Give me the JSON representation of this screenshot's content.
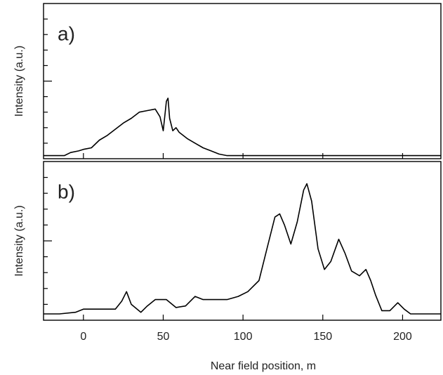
{
  "chart_data": [
    {
      "type": "line",
      "label": "a)",
      "ylabel": "Intensity (a.u.)",
      "xlim": [
        -25,
        224
      ],
      "xticks": [
        0,
        50,
        100,
        150,
        200
      ],
      "ylim": [
        0,
        10
      ],
      "yticks": [
        5
      ],
      "minor_yticks": [
        1,
        2,
        3,
        4,
        6,
        7,
        8,
        9
      ],
      "x": [
        -25,
        -12,
        -8,
        -3,
        0,
        5,
        10,
        15,
        20,
        25,
        30,
        35,
        40,
        45,
        48,
        50,
        52,
        53,
        54,
        56,
        58,
        60,
        65,
        70,
        75,
        80,
        85,
        90,
        224
      ],
      "series": [
        {
          "color": "#000000",
          "values": [
            0.2,
            0.2,
            0.4,
            0.5,
            0.6,
            0.7,
            1.2,
            1.5,
            1.9,
            2.3,
            2.6,
            3.0,
            3.1,
            3.2,
            2.7,
            1.8,
            3.7,
            3.9,
            2.6,
            1.8,
            2.0,
            1.7,
            1.3,
            1.0,
            0.7,
            0.5,
            0.3,
            0.2,
            0.2
          ]
        }
      ]
    },
    {
      "type": "line",
      "label": "b)",
      "ylabel": "Intensity (a.u.)",
      "xlabel": "Near field position,   m",
      "xlim": [
        -25,
        224
      ],
      "xticks": [
        0,
        50,
        100,
        150,
        200
      ],
      "ylim": [
        0,
        10
      ],
      "yticks": [
        5
      ],
      "minor_yticks": [
        1,
        2,
        3,
        4,
        6,
        7,
        8,
        9
      ],
      "x": [
        -25,
        -15,
        -5,
        0,
        10,
        20,
        24,
        27,
        30,
        36,
        40,
        45,
        52,
        58,
        64,
        70,
        75,
        90,
        97,
        103,
        110,
        115,
        120,
        123,
        126,
        130,
        134,
        138,
        140,
        143,
        147,
        151,
        155,
        160,
        164,
        168,
        173,
        177,
        180,
        183,
        187,
        192,
        197,
        201,
        205,
        224
      ],
      "series": [
        {
          "color": "#000000",
          "values": [
            0.4,
            0.4,
            0.5,
            0.7,
            0.7,
            0.7,
            1.2,
            1.8,
            1.0,
            0.5,
            0.9,
            1.3,
            1.3,
            0.8,
            0.9,
            1.5,
            1.3,
            1.3,
            1.5,
            1.8,
            2.5,
            4.5,
            6.5,
            6.7,
            6.0,
            4.8,
            6.2,
            8.2,
            8.6,
            7.5,
            4.5,
            3.2,
            3.7,
            5.1,
            4.2,
            3.1,
            2.8,
            3.2,
            2.5,
            1.6,
            0.6,
            0.6,
            1.1,
            0.7,
            0.4,
            0.4
          ]
        }
      ]
    }
  ]
}
